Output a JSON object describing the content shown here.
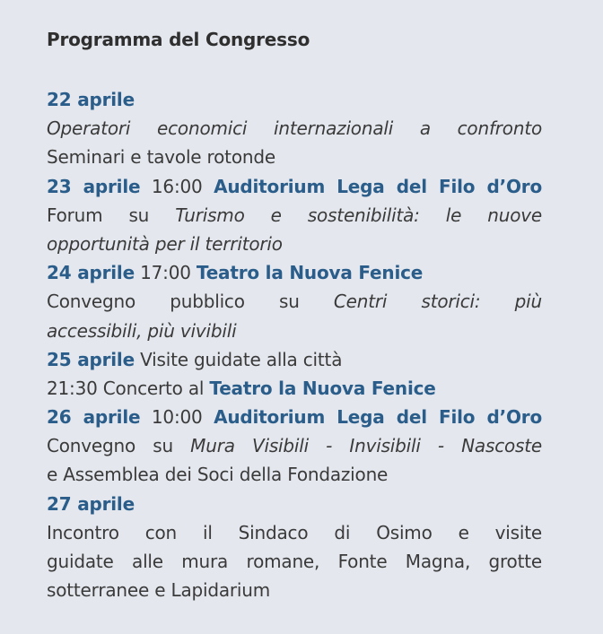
{
  "title": "Programma del Congresso",
  "colors": {
    "background": "#e4e8ee",
    "accent": "#2b5d8a",
    "text": "#3a3a3a"
  },
  "lines": [
    {
      "justify": false,
      "segments": [
        {
          "text": "22 aprile",
          "style": "date"
        }
      ]
    },
    {
      "justify": true,
      "segments": [
        {
          "text": "Operatori economici internazionali a confronto",
          "style": "italic"
        }
      ]
    },
    {
      "justify": false,
      "segments": [
        {
          "text": "Seminari e tavole rotonde",
          "style": "plain"
        }
      ]
    },
    {
      "justify": true,
      "segments": [
        {
          "text": "23 aprile",
          "style": "date"
        },
        {
          "text": " 16:00 ",
          "style": "plain"
        },
        {
          "text": "Auditorium Lega del Filo d’Oro",
          "style": "venue"
        }
      ]
    },
    {
      "justify": true,
      "segments": [
        {
          "text": "Forum su ",
          "style": "plain"
        },
        {
          "text": "Turismo e sostenibilità: le nuove",
          "style": "italic"
        }
      ]
    },
    {
      "justify": false,
      "segments": [
        {
          "text": "opportunità per il territorio",
          "style": "italic"
        }
      ]
    },
    {
      "justify": false,
      "segments": [
        {
          "text": "24 aprile",
          "style": "date"
        },
        {
          "text": " 17:00 ",
          "style": "plain"
        },
        {
          "text": "Teatro la Nuova Fenice",
          "style": "venue"
        }
      ]
    },
    {
      "justify": true,
      "segments": [
        {
          "text": "Convegno pubblico su ",
          "style": "plain"
        },
        {
          "text": "Centri storici: più",
          "style": "italic"
        }
      ]
    },
    {
      "justify": false,
      "segments": [
        {
          "text": "accessibili, più vivibili",
          "style": "italic"
        }
      ]
    },
    {
      "justify": false,
      "segments": [
        {
          "text": "25 aprile",
          "style": "date"
        },
        {
          "text": " Visite guidate alla città",
          "style": "plain"
        }
      ]
    },
    {
      "justify": false,
      "segments": [
        {
          "text": "21:30 Concerto al ",
          "style": "plain"
        },
        {
          "text": "Teatro la Nuova Fenice",
          "style": "venue"
        }
      ]
    },
    {
      "justify": true,
      "segments": [
        {
          "text": "26 aprile",
          "style": "date"
        },
        {
          "text": " 10:00 ",
          "style": "plain"
        },
        {
          "text": "Auditorium Lega del Filo d’Oro",
          "style": "venue"
        }
      ]
    },
    {
      "justify": true,
      "segments": [
        {
          "text": "Convegno su ",
          "style": "plain"
        },
        {
          "text": "Mura Visibili - Invisibili - Nascoste",
          "style": "italic"
        }
      ]
    },
    {
      "justify": false,
      "segments": [
        {
          "text": "e Assemblea dei Soci della Fondazione",
          "style": "plain"
        }
      ]
    },
    {
      "justify": false,
      "segments": [
        {
          "text": "27 aprile",
          "style": "date"
        }
      ]
    },
    {
      "justify": true,
      "segments": [
        {
          "text": "Incontro con il Sindaco di Osimo e visite",
          "style": "plain"
        }
      ]
    },
    {
      "justify": true,
      "segments": [
        {
          "text": "guidate alle mura romane, Fonte Magna, grotte",
          "style": "plain"
        }
      ]
    },
    {
      "justify": false,
      "segments": [
        {
          "text": "sotterranee e Lapidarium",
          "style": "plain"
        }
      ]
    }
  ]
}
